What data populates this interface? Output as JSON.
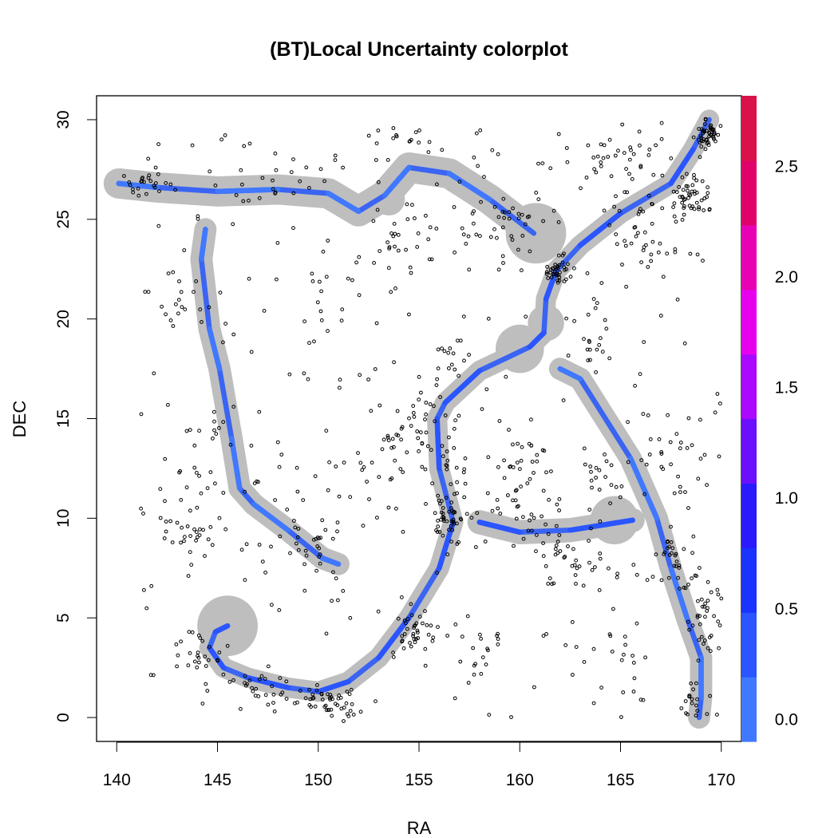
{
  "chart_data": {
    "type": "scatter",
    "title": "(BT)Local Uncertainty colorplot",
    "xlabel": "RA",
    "ylabel": "DEC",
    "xlim": [
      139,
      171
    ],
    "ylim": [
      -1.2,
      31.2
    ],
    "xticks": [
      "140",
      "145",
      "150",
      "155",
      "160",
      "165",
      "170"
    ],
    "yticks": [
      "0",
      "5",
      "10",
      "15",
      "20",
      "25",
      "30"
    ],
    "colorbar": {
      "range": [
        -0.1,
        2.82
      ],
      "ticks": [
        "0.0",
        "0.5",
        "1.0",
        "1.5",
        "2.0",
        "2.5"
      ],
      "colors": [
        "#4078ff",
        "#2a55ff",
        "#1a33ff",
        "#2a1bff",
        "#6a10ff",
        "#aa08ff",
        "#e600ee",
        "#e800b4",
        "#e0006a",
        "#d9134a"
      ]
    },
    "band_color": "#bebebe",
    "curve_color": "#3a64f2",
    "point_color": "#000000",
    "filaments": [
      {
        "points": [
          [
            140.1,
            26.8
          ],
          [
            142.0,
            26.6
          ],
          [
            145.0,
            26.4
          ],
          [
            148.0,
            26.5
          ],
          [
            150.5,
            26.3
          ],
          [
            152.0,
            25.4
          ],
          [
            153.3,
            26.2
          ],
          [
            154.5,
            27.6
          ],
          [
            156.5,
            27.3
          ],
          [
            158.5,
            26.0
          ],
          [
            160.7,
            24.3
          ]
        ],
        "uncertainty": 0.15
      },
      {
        "points": [
          [
            144.4,
            24.5
          ],
          [
            144.2,
            23.0
          ],
          [
            144.6,
            19.5
          ],
          [
            145.1,
            17.5
          ],
          [
            145.7,
            14.0
          ],
          [
            146.1,
            11.5
          ],
          [
            146.8,
            10.7
          ],
          [
            148.5,
            9.4
          ],
          [
            150.2,
            8.0
          ],
          [
            151.0,
            7.7
          ]
        ],
        "uncertainty": 0.15
      },
      {
        "points": [
          [
            145.5,
            4.6
          ],
          [
            144.9,
            4.3
          ],
          [
            144.6,
            3.5
          ],
          [
            145.3,
            2.5
          ],
          [
            146.5,
            2.0
          ],
          [
            148.5,
            1.5
          ],
          [
            150.0,
            1.3
          ],
          [
            151.5,
            1.8
          ],
          [
            153.0,
            3.0
          ],
          [
            154.5,
            5.0
          ],
          [
            156.0,
            7.5
          ],
          [
            156.7,
            9.8
          ],
          [
            156.0,
            12.5
          ],
          [
            155.9,
            15.0
          ],
          [
            156.3,
            15.8
          ],
          [
            158.0,
            17.4
          ],
          [
            160.5,
            18.6
          ],
          [
            161.2,
            19.3
          ],
          [
            161.3,
            21.0
          ],
          [
            161.8,
            22.4
          ],
          [
            163.0,
            23.7
          ],
          [
            165.0,
            25.3
          ],
          [
            167.5,
            26.8
          ],
          [
            168.6,
            28.5
          ],
          [
            169.4,
            30.0
          ]
        ],
        "uncertainty": 0.2
      },
      {
        "points": [
          [
            162.0,
            17.5
          ],
          [
            163.0,
            17.0
          ],
          [
            165.5,
            13.0
          ],
          [
            166.8,
            10.0
          ],
          [
            167.5,
            7.5
          ],
          [
            168.3,
            5.0
          ],
          [
            169.0,
            3.0
          ],
          [
            169.0,
            1.0
          ],
          [
            168.9,
            0.0
          ]
        ],
        "uncertainty": 0.15
      },
      {
        "points": [
          [
            158.0,
            9.8
          ],
          [
            160.0,
            9.3
          ],
          [
            162.5,
            9.4
          ],
          [
            165.6,
            9.9
          ]
        ],
        "uncertainty": 0.2
      }
    ],
    "bands": [
      {
        "points": [
          [
            140.1,
            26.8
          ],
          [
            142.0,
            26.6
          ],
          [
            145.0,
            26.4
          ],
          [
            148.0,
            26.5
          ],
          [
            150.5,
            26.3
          ],
          [
            152.0,
            25.4
          ],
          [
            153.3,
            26.2
          ],
          [
            154.5,
            27.6
          ],
          [
            156.5,
            27.3
          ],
          [
            158.5,
            26.0
          ],
          [
            160.7,
            24.3
          ]
        ],
        "halfwidth": 0.75
      },
      {
        "points": [
          [
            144.4,
            24.5
          ],
          [
            144.2,
            23.0
          ],
          [
            144.6,
            19.5
          ],
          [
            145.1,
            17.5
          ],
          [
            145.7,
            14.0
          ],
          [
            146.1,
            11.5
          ],
          [
            146.8,
            10.7
          ],
          [
            148.5,
            9.4
          ],
          [
            150.2,
            8.0
          ],
          [
            151.0,
            7.7
          ]
        ],
        "halfwidth": 0.55
      },
      {
        "points": [
          [
            145.5,
            4.6
          ],
          [
            144.9,
            4.3
          ],
          [
            144.6,
            3.5
          ],
          [
            145.3,
            2.5
          ],
          [
            146.5,
            2.0
          ],
          [
            148.5,
            1.5
          ],
          [
            150.0,
            1.3
          ],
          [
            151.5,
            1.8
          ],
          [
            153.0,
            3.0
          ],
          [
            154.5,
            5.0
          ],
          [
            156.0,
            7.5
          ],
          [
            156.7,
            9.8
          ],
          [
            156.0,
            12.5
          ],
          [
            155.9,
            15.0
          ],
          [
            156.3,
            15.8
          ],
          [
            158.0,
            17.4
          ],
          [
            160.5,
            18.6
          ],
          [
            161.2,
            19.3
          ],
          [
            161.3,
            21.0
          ],
          [
            161.8,
            22.4
          ],
          [
            163.0,
            23.7
          ],
          [
            165.0,
            25.3
          ],
          [
            167.5,
            26.8
          ],
          [
            168.6,
            28.5
          ],
          [
            169.4,
            30.0
          ]
        ],
        "halfwidth": 0.5
      },
      {
        "points": [
          [
            162.0,
            17.5
          ],
          [
            163.0,
            17.0
          ],
          [
            165.5,
            13.0
          ],
          [
            166.8,
            10.0
          ],
          [
            167.5,
            7.5
          ],
          [
            168.3,
            5.0
          ],
          [
            169.0,
            3.0
          ],
          [
            169.0,
            1.0
          ],
          [
            168.9,
            0.0
          ]
        ],
        "halfwidth": 0.55
      },
      {
        "points": [
          [
            158.0,
            9.8
          ],
          [
            160.0,
            9.3
          ],
          [
            162.5,
            9.4
          ],
          [
            165.6,
            9.9
          ]
        ],
        "halfwidth": 0.6
      }
    ],
    "blobs": [
      {
        "x": 145.5,
        "y": 4.6,
        "r": 1.5
      },
      {
        "x": 160.8,
        "y": 24.3,
        "r": 1.5
      },
      {
        "x": 160.0,
        "y": 18.5,
        "r": 1.2
      },
      {
        "x": 161.3,
        "y": 19.8,
        "r": 0.9
      },
      {
        "x": 164.7,
        "y": 9.9,
        "r": 1.2
      },
      {
        "x": 153.5,
        "y": 26.0,
        "r": 0.8
      },
      {
        "x": 140.5,
        "y": 26.8,
        "r": 0.7
      }
    ],
    "clusters": [
      {
        "x": 169.3,
        "y": 29.2,
        "sx": 0.5,
        "sy": 0.5,
        "n": 45
      },
      {
        "x": 168.5,
        "y": 26.0,
        "sx": 0.8,
        "sy": 1.0,
        "n": 45
      },
      {
        "x": 162.0,
        "y": 22.4,
        "sx": 0.7,
        "sy": 0.7,
        "n": 40
      },
      {
        "x": 165.0,
        "y": 28.0,
        "sx": 2.5,
        "sy": 1.5,
        "n": 40
      },
      {
        "x": 166.5,
        "y": 24.0,
        "sx": 1.5,
        "sy": 2.0,
        "n": 35
      },
      {
        "x": 158.5,
        "y": 25.0,
        "sx": 2.0,
        "sy": 1.5,
        "n": 35
      },
      {
        "x": 156.5,
        "y": 9.8,
        "sx": 0.8,
        "sy": 1.3,
        "n": 45
      },
      {
        "x": 155.0,
        "y": 14.5,
        "sx": 1.5,
        "sy": 1.5,
        "n": 40
      },
      {
        "x": 156.5,
        "y": 12.5,
        "sx": 1.0,
        "sy": 1.5,
        "n": 20
      },
      {
        "x": 154.8,
        "y": 4.5,
        "sx": 1.0,
        "sy": 1.2,
        "n": 35
      },
      {
        "x": 150.5,
        "y": 0.8,
        "sx": 1.5,
        "sy": 0.6,
        "n": 45
      },
      {
        "x": 147.0,
        "y": 1.5,
        "sx": 1.5,
        "sy": 0.8,
        "n": 25
      },
      {
        "x": 144.0,
        "y": 3.0,
        "sx": 1.2,
        "sy": 1.2,
        "n": 25
      },
      {
        "x": 145.0,
        "y": 12.5,
        "sx": 2.0,
        "sy": 3.0,
        "n": 30
      },
      {
        "x": 143.8,
        "y": 9.5,
        "sx": 1.2,
        "sy": 1.0,
        "n": 20
      },
      {
        "x": 141.5,
        "y": 26.8,
        "sx": 1.0,
        "sy": 0.8,
        "n": 25
      },
      {
        "x": 143.5,
        "y": 21.5,
        "sx": 1.5,
        "sy": 3.0,
        "n": 20
      },
      {
        "x": 149.5,
        "y": 8.5,
        "sx": 1.5,
        "sy": 1.5,
        "n": 25
      },
      {
        "x": 160.0,
        "y": 10.5,
        "sx": 2.0,
        "sy": 2.0,
        "n": 40
      },
      {
        "x": 162.5,
        "y": 8.0,
        "sx": 1.5,
        "sy": 1.0,
        "n": 30
      },
      {
        "x": 164.0,
        "y": 12.0,
        "sx": 1.0,
        "sy": 1.5,
        "n": 20
      },
      {
        "x": 167.5,
        "y": 8.0,
        "sx": 0.8,
        "sy": 1.5,
        "n": 30
      },
      {
        "x": 169.2,
        "y": 5.5,
        "sx": 0.7,
        "sy": 2.0,
        "n": 35
      },
      {
        "x": 168.5,
        "y": 1.0,
        "sx": 0.4,
        "sy": 0.8,
        "n": 15
      },
      {
        "x": 167.5,
        "y": 13.0,
        "sx": 1.5,
        "sy": 2.0,
        "n": 25
      },
      {
        "x": 154.0,
        "y": 29.2,
        "sx": 1.2,
        "sy": 0.4,
        "n": 12
      },
      {
        "x": 148.0,
        "y": 27.0,
        "sx": 2.0,
        "sy": 1.0,
        "n": 15
      },
      {
        "x": 151.5,
        "y": 22.0,
        "sx": 2.5,
        "sy": 2.5,
        "n": 15
      },
      {
        "x": 152.5,
        "y": 12.0,
        "sx": 1.5,
        "sy": 2.0,
        "n": 20
      },
      {
        "x": 155.0,
        "y": 24.0,
        "sx": 2.0,
        "sy": 1.5,
        "n": 20
      },
      {
        "x": 163.5,
        "y": 19.0,
        "sx": 1.2,
        "sy": 1.5,
        "n": 18
      },
      {
        "x": 158.0,
        "y": 3.5,
        "sx": 1.2,
        "sy": 1.5,
        "n": 15
      },
      {
        "x": 160.5,
        "y": 13.5,
        "sx": 1.0,
        "sy": 1.0,
        "n": 15
      },
      {
        "x": 156.5,
        "y": 18.0,
        "sx": 1.0,
        "sy": 1.0,
        "n": 15
      },
      {
        "x": 165.0,
        "y": 3.0,
        "sx": 1.5,
        "sy": 1.5,
        "n": 15
      }
    ],
    "background_points": 280
  }
}
